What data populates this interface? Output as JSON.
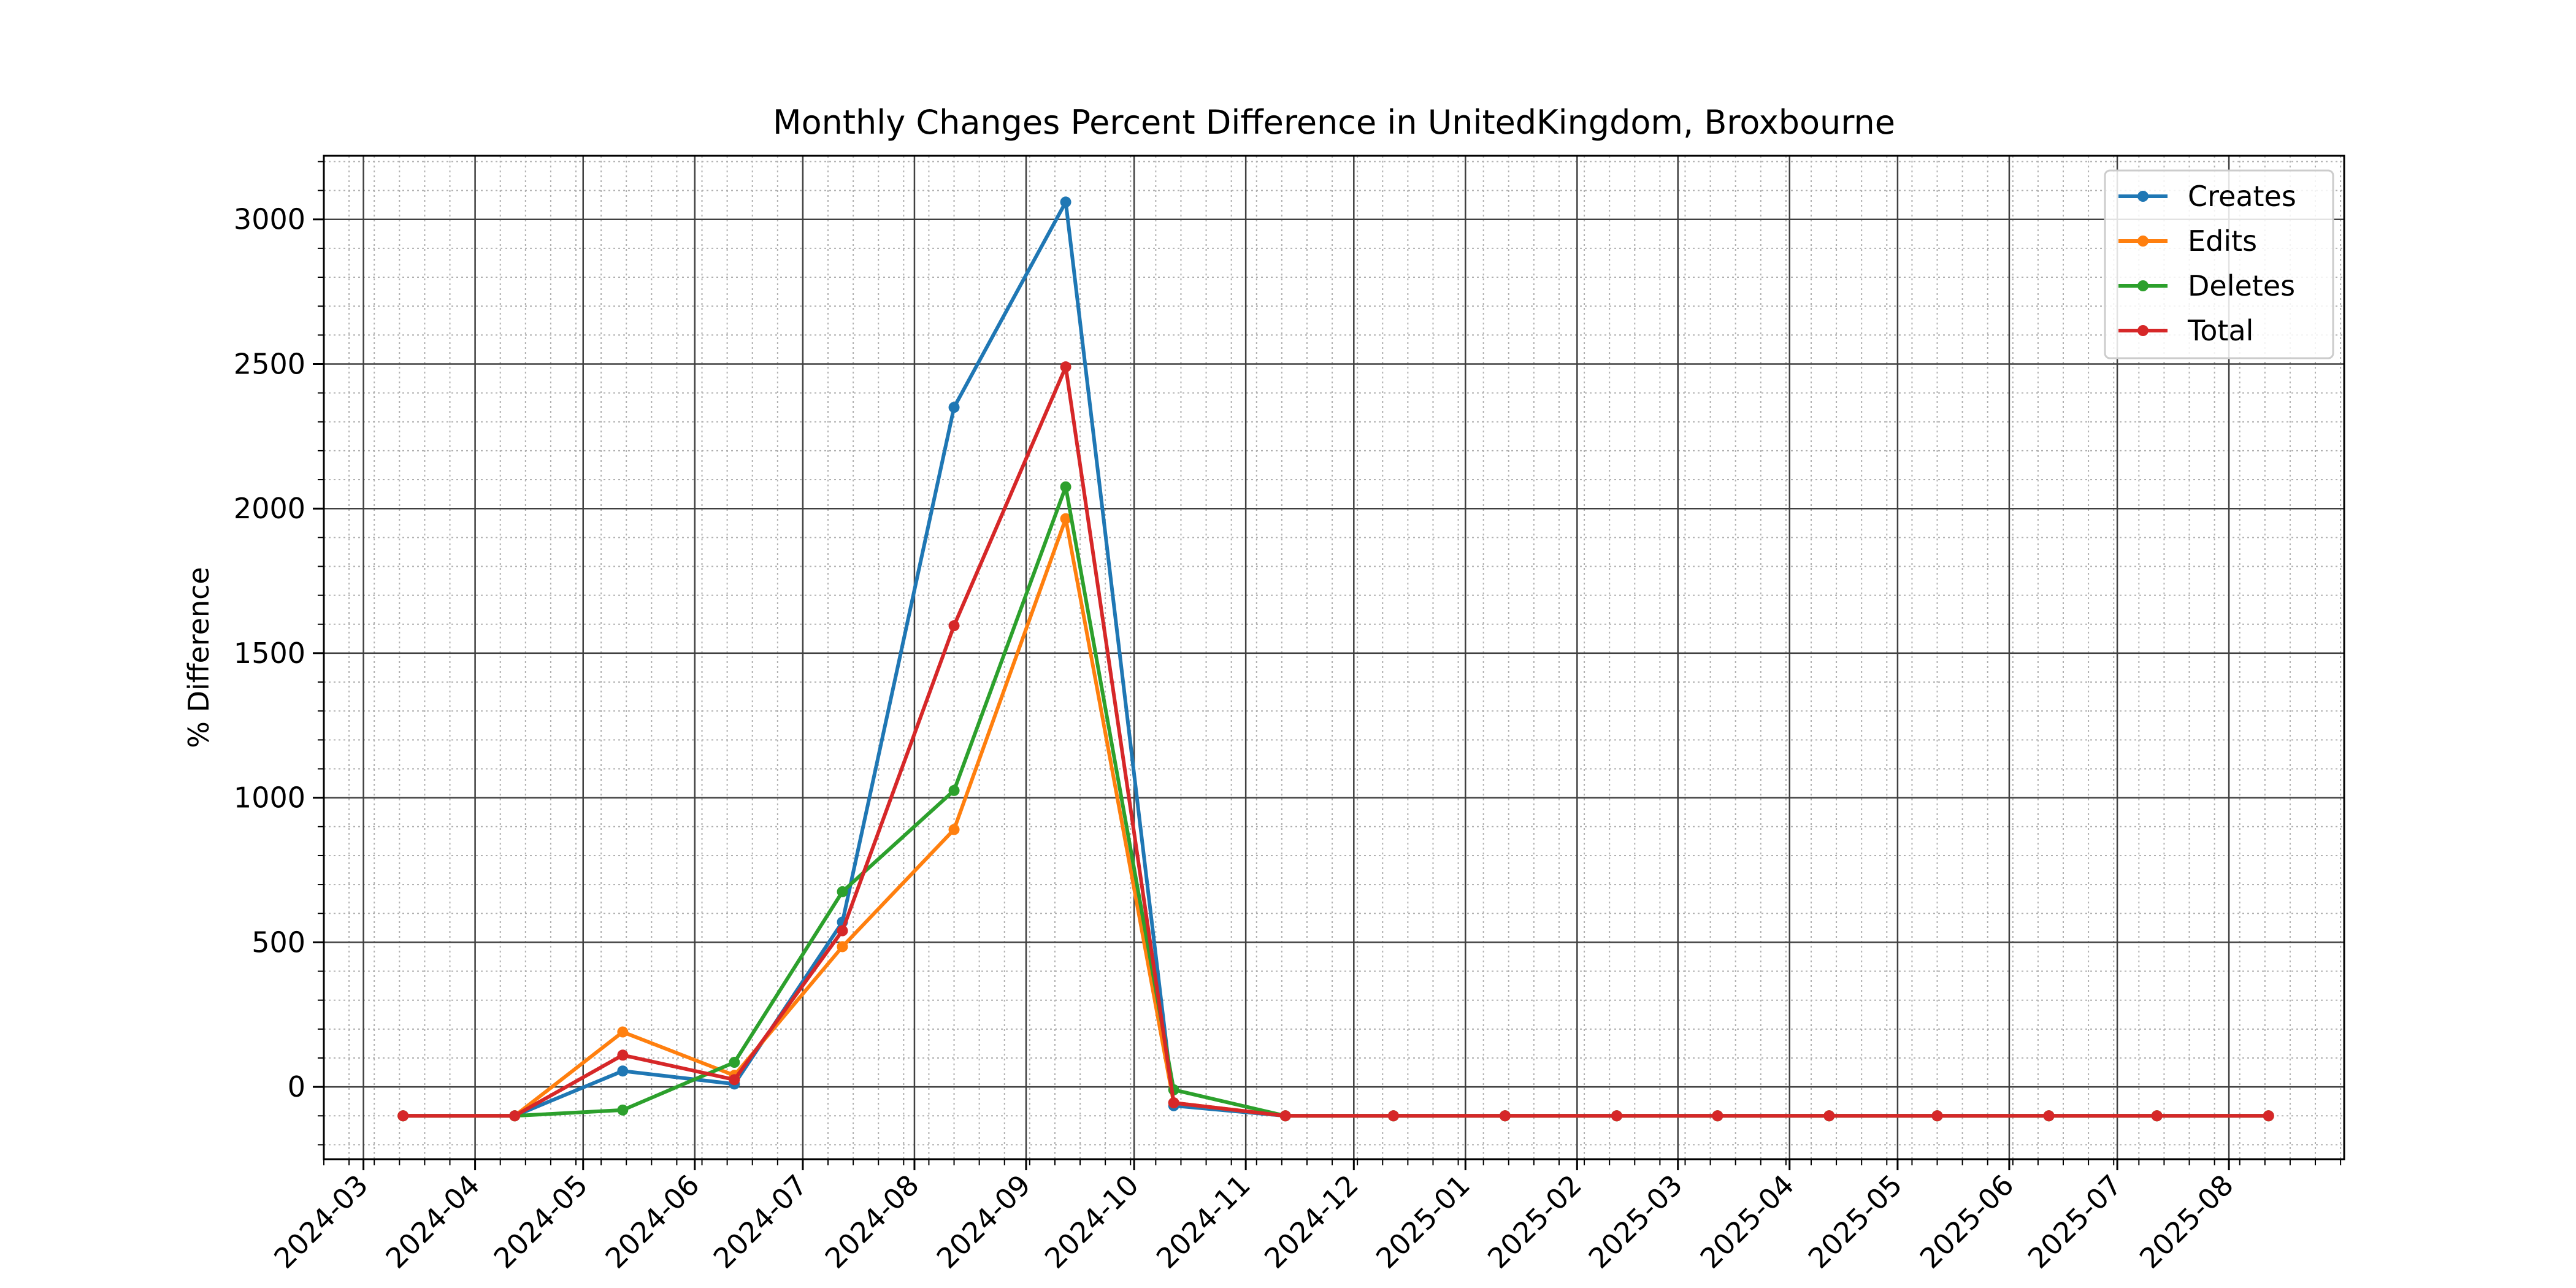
{
  "chart_data": {
    "type": "line",
    "title": "Monthly Changes Percent Difference in UnitedKingdom, Broxbourne",
    "xlabel": "",
    "ylabel": "% Difference",
    "x": [
      "2024-03-12",
      "2024-04-12",
      "2024-05-12",
      "2024-06-12",
      "2024-07-12",
      "2024-08-12",
      "2024-09-12",
      "2024-10-12",
      "2024-11-12",
      "2024-12-12",
      "2025-01-12",
      "2025-02-12",
      "2025-03-12",
      "2025-04-12",
      "2025-05-12",
      "2025-06-12",
      "2025-07-12",
      "2025-08-12"
    ],
    "xticks": [
      "2024-03",
      "2024-04",
      "2024-05",
      "2024-06",
      "2024-07",
      "2024-08",
      "2024-09",
      "2024-10",
      "2024-11",
      "2024-12",
      "2025-01",
      "2025-02",
      "2025-03",
      "2025-04",
      "2025-05",
      "2025-06",
      "2025-07",
      "2025-08"
    ],
    "xlim": [
      "2024-02-19",
      "2025-09-02"
    ],
    "ylim": [
      -250,
      3220
    ],
    "yticks": [
      0,
      500,
      1000,
      1500,
      2000,
      2500,
      3000
    ],
    "grid": true,
    "legend_position": "top-right",
    "series": [
      {
        "name": "Creates",
        "color": "#1f77b4",
        "values": [
          -100,
          -100,
          55,
          10,
          570,
          2350,
          3060,
          -65,
          -100,
          -100,
          -100,
          -100,
          -100,
          -100,
          -100,
          -100,
          -100,
          -100
        ]
      },
      {
        "name": "Edits",
        "color": "#ff7f0e",
        "values": [
          -100,
          -100,
          190,
          40,
          485,
          890,
          1965,
          -55,
          -100,
          -100,
          -100,
          -100,
          -100,
          -100,
          -100,
          -100,
          -100,
          -100
        ]
      },
      {
        "name": "Deletes",
        "color": "#2ca02c",
        "values": [
          -100,
          -100,
          -80,
          85,
          675,
          1025,
          2075,
          -10,
          -100,
          -100,
          -100,
          -100,
          -100,
          -100,
          -100,
          -100,
          -100,
          -100
        ]
      },
      {
        "name": "Total",
        "color": "#d62728",
        "values": [
          -100,
          -100,
          110,
          25,
          540,
          1595,
          2490,
          -55,
          -100,
          -100,
          -100,
          -100,
          -100,
          -100,
          -100,
          -100,
          -100,
          -100
        ]
      }
    ]
  }
}
